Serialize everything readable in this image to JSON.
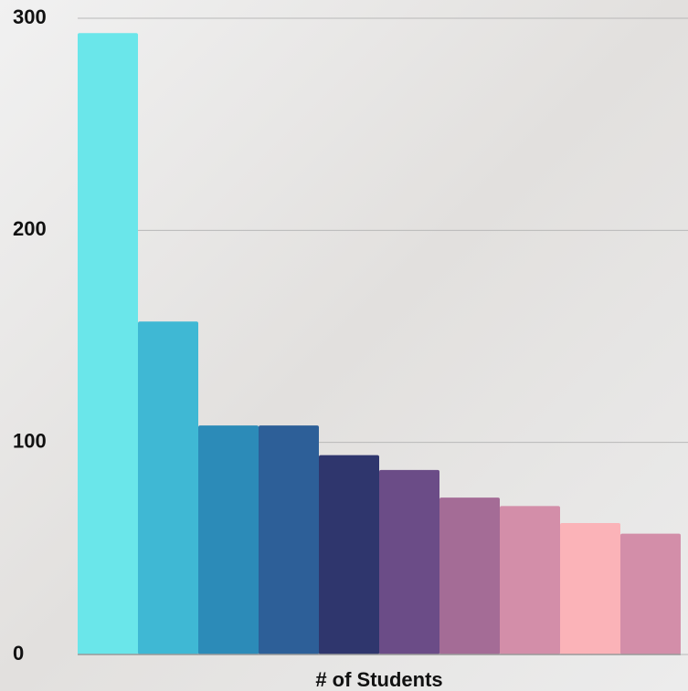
{
  "chart_data": {
    "type": "bar",
    "x_label": "# of Students",
    "categories": [
      null,
      null,
      null,
      null,
      null,
      null,
      null,
      null,
      null,
      null
    ],
    "values": [
      293,
      157,
      108,
      108,
      94,
      87,
      74,
      70,
      62,
      57
    ],
    "colors": [
      "#6ae6ea",
      "#3fb8d4",
      "#2c8bb8",
      "#2d5f98",
      "#2f366d",
      "#6b4c87",
      "#a46c96",
      "#d38ea9",
      "#fbb3b8",
      "#d38ea9"
    ],
    "ylim": [
      0,
      300
    ],
    "yticks": [
      0,
      100,
      200,
      300
    ],
    "grid": true
  }
}
